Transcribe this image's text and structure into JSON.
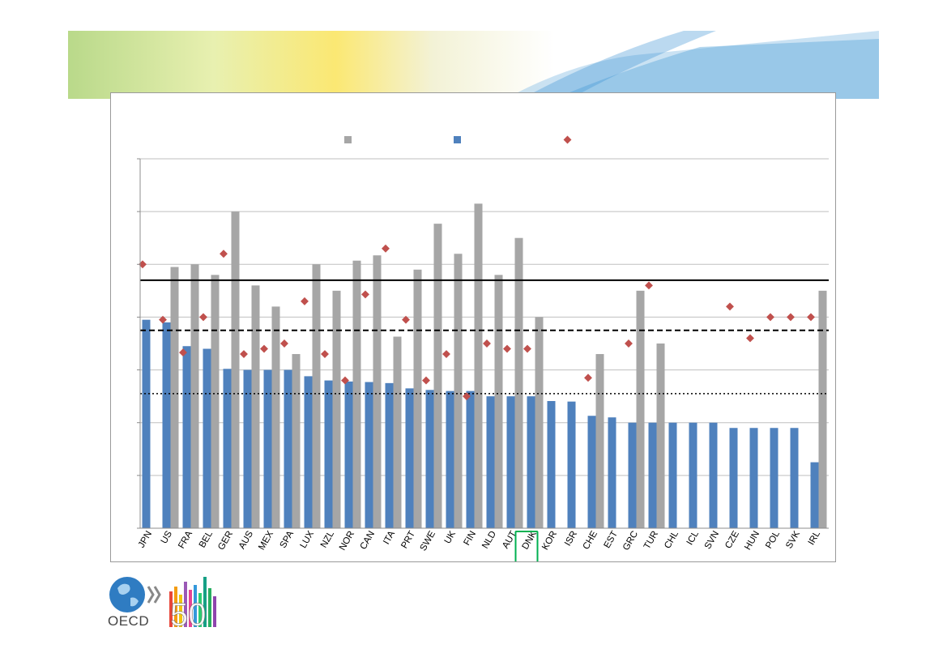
{
  "brand": {
    "logo_text": "OECD",
    "anniversary": "50"
  },
  "colors": {
    "grey_bar": "#a6a6a6",
    "blue_bar": "#4f81bd",
    "marker": "#c0504d",
    "highlight": "#00b050"
  },
  "chart_data": {
    "type": "bar",
    "title": "",
    "xlabel": "",
    "ylabel": "",
    "ylim": [
      0,
      7
    ],
    "grid": true,
    "highlight_category": "DNK",
    "categories": [
      "JPN",
      "US",
      "FRA",
      "BEL",
      "GER",
      "AUS",
      "MEX",
      "SPA",
      "LUX",
      "NZL",
      "NOR",
      "CAN",
      "ITA",
      "PRT",
      "SWE",
      "UK",
      "FIN",
      "NLD",
      "AUT",
      "DNK",
      "KOR",
      "ISR",
      "CHE",
      "EST",
      "GRC",
      "TUR",
      "CHL",
      "ICL",
      "SVN",
      "CZE",
      "HUN",
      "POL",
      "SVK",
      "IRL"
    ],
    "series": [
      {
        "kind": "bar",
        "values": [
          null,
          4.95,
          5.0,
          4.8,
          6.0,
          4.6,
          4.2,
          3.3,
          5.0,
          4.5,
          5.07,
          5.17,
          3.63,
          4.9,
          5.77,
          5.2,
          6.15,
          4.8,
          5.5,
          4.0,
          null,
          null,
          3.3,
          null,
          4.5,
          3.5,
          null,
          null,
          null,
          null,
          null,
          null,
          null,
          4.5
        ]
      },
      {
        "kind": "bar",
        "values": [
          3.95,
          3.9,
          3.45,
          3.4,
          3.02,
          3.0,
          3.0,
          3.0,
          2.88,
          2.8,
          2.78,
          2.77,
          2.75,
          2.65,
          2.62,
          2.6,
          2.6,
          2.5,
          2.5,
          2.5,
          2.41,
          2.4,
          2.13,
          2.1,
          2.0,
          2.0,
          2.0,
          2.0,
          2.0,
          1.9,
          1.9,
          1.9,
          1.9,
          1.25
        ]
      },
      {
        "kind": "marker",
        "values": [
          5.0,
          3.95,
          3.33,
          4.0,
          5.2,
          3.3,
          3.4,
          3.5,
          4.3,
          3.3,
          2.8,
          4.43,
          5.3,
          3.95,
          2.8,
          3.3,
          2.5,
          3.5,
          3.4,
          3.4,
          null,
          null,
          2.85,
          null,
          3.5,
          4.6,
          null,
          null,
          null,
          4.2,
          3.6,
          4.0,
          4.0,
          4.0
        ]
      }
    ],
    "reference_lines": [
      {
        "style": "solid",
        "value": 4.7
      },
      {
        "style": "dashed",
        "value": 3.75
      },
      {
        "style": "dotted",
        "value": 2.55
      }
    ]
  }
}
